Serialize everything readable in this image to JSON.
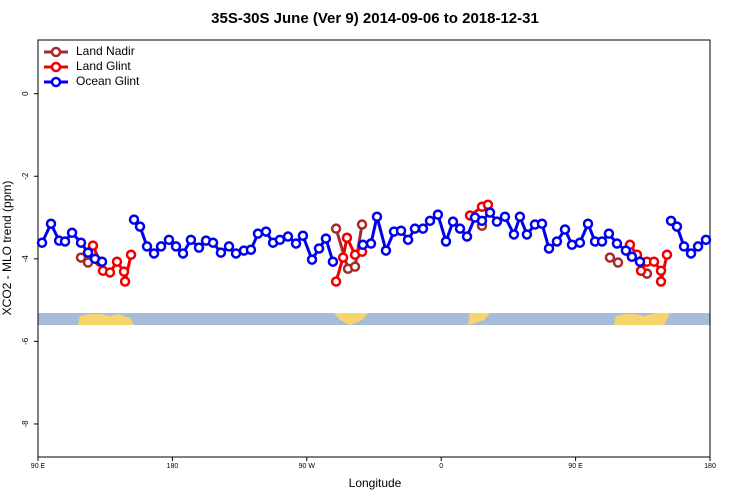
{
  "chart_data": {
    "type": "line",
    "title": "35S-30S June (Ver 9)   2014-09-06 to 2018-12-31",
    "x_label": "Longitude",
    "y_label": "XCO2 - MLO trend (ppm)",
    "xlim": [
      90,
      540
    ],
    "xticks": [
      {
        "value": 90,
        "label": "90 E"
      },
      180,
      {
        "value": 270,
        "label": "90 W"
      },
      {
        "value": 360,
        "label": "0"
      },
      {
        "value": 450,
        "label": "90 E"
      },
      {
        "value": 540,
        "label": "180"
      }
    ],
    "ylim": [
      -8.8,
      1.3
    ],
    "yticks": [
      0,
      -2,
      -4,
      -6,
      -8
    ],
    "legend": "top-left",
    "series": [
      {
        "name": "Land Nadir",
        "color": "#a52a2a",
        "x": [
          118.8,
          123.5,
          null,
          289.6,
          297.6,
          302.3,
          307.0,
          null,
          387.3,
          null,
          473.0,
          478.4,
          null,
          497.8
        ],
        "values": [
          -3.97,
          -4.09,
          null,
          -3.27,
          -4.24,
          -4.19,
          -3.17,
          null,
          -3.2,
          null,
          -3.97,
          -4.09,
          null,
          -4.36
        ]
      },
      {
        "name": "Land Glint",
        "color": "#ee0000",
        "x": [
          126.8,
          131.5,
          133.5,
          138.2,
          142.9,
          147.6,
          148.3,
          152.3,
          null,
          289.6,
          294.3,
          296.9,
          302.3,
          307.0,
          null,
          379.3,
          387.3,
          391.3,
          null,
          486.4,
          491.1,
          493.8,
          497.8,
          502.5,
          507.2,
          507.2,
          511.2
        ],
        "values": [
          -3.68,
          -4.07,
          -4.29,
          -4.33,
          -4.07,
          -4.31,
          -4.55,
          -3.9,
          null,
          -4.55,
          -3.97,
          -3.49,
          -3.9,
          -3.83,
          null,
          -2.95,
          -2.74,
          -2.69,
          null,
          -3.66,
          -3.9,
          -4.29,
          -4.07,
          -4.07,
          -4.29,
          -4.55,
          -3.9
        ]
      },
      {
        "name": "Ocean Glint",
        "color": "#0000ee",
        "x": [
          92.7,
          98.7,
          104.1,
          108.1,
          112.8,
          118.8,
          123.5,
          128.2,
          132.9,
          null,
          154.3,
          158.3,
          163.0,
          167.7,
          172.4,
          177.7,
          182.4,
          187.1,
          192.4,
          197.8,
          202.5,
          207.2,
          212.5,
          217.9,
          222.6,
          227.9,
          232.6,
          237.3,
          242.7,
          247.4,
          252.0,
          257.4,
          262.8,
          267.4,
          273.5,
          278.2,
          282.8,
          287.5,
          null,
          307.6,
          313.0,
          317.0,
          323.0,
          328.4,
          333.1,
          337.8,
          342.4,
          347.8,
          352.5,
          357.8,
          363.2,
          367.9,
          372.6,
          377.3,
          382.6,
          387.3,
          392.7,
          397.3,
          402.7,
          408.7,
          412.7,
          417.4,
          422.8,
          427.5,
          432.2,
          437.5,
          442.9,
          447.6,
          452.9,
          458.3,
          463.0,
          467.7,
          472.3,
          477.7,
          483.7,
          487.7,
          493.1,
          null,
          513.9,
          517.9,
          522.6,
          527.3,
          532.0,
          537.3
        ],
        "values": [
          -3.61,
          -3.15,
          -3.56,
          -3.58,
          -3.37,
          -3.61,
          -3.85,
          -4.0,
          -4.07,
          null,
          -3.05,
          -3.22,
          -3.7,
          -3.87,
          -3.7,
          -3.54,
          -3.7,
          -3.87,
          -3.54,
          -3.73,
          -3.56,
          -3.61,
          -3.85,
          -3.7,
          -3.87,
          -3.8,
          -3.78,
          -3.39,
          -3.34,
          -3.61,
          -3.54,
          -3.46,
          -3.63,
          -3.44,
          -4.02,
          -3.75,
          -3.51,
          -4.07,
          null,
          -3.66,
          -3.63,
          -2.98,
          -3.8,
          -3.34,
          -3.32,
          -3.54,
          -3.27,
          -3.27,
          -3.08,
          -2.93,
          -3.58,
          -3.1,
          -3.27,
          -3.46,
          -3.0,
          -3.08,
          -2.88,
          -3.1,
          -2.98,
          -3.41,
          -2.98,
          -3.41,
          -3.17,
          -3.15,
          -3.75,
          -3.58,
          -3.29,
          -3.66,
          -3.61,
          -3.15,
          -3.58,
          -3.58,
          -3.39,
          -3.63,
          -3.8,
          -3.95,
          -4.07,
          null,
          -3.08,
          -3.22,
          -3.7,
          -3.87,
          -3.7,
          -3.54
        ]
      }
    ]
  }
}
